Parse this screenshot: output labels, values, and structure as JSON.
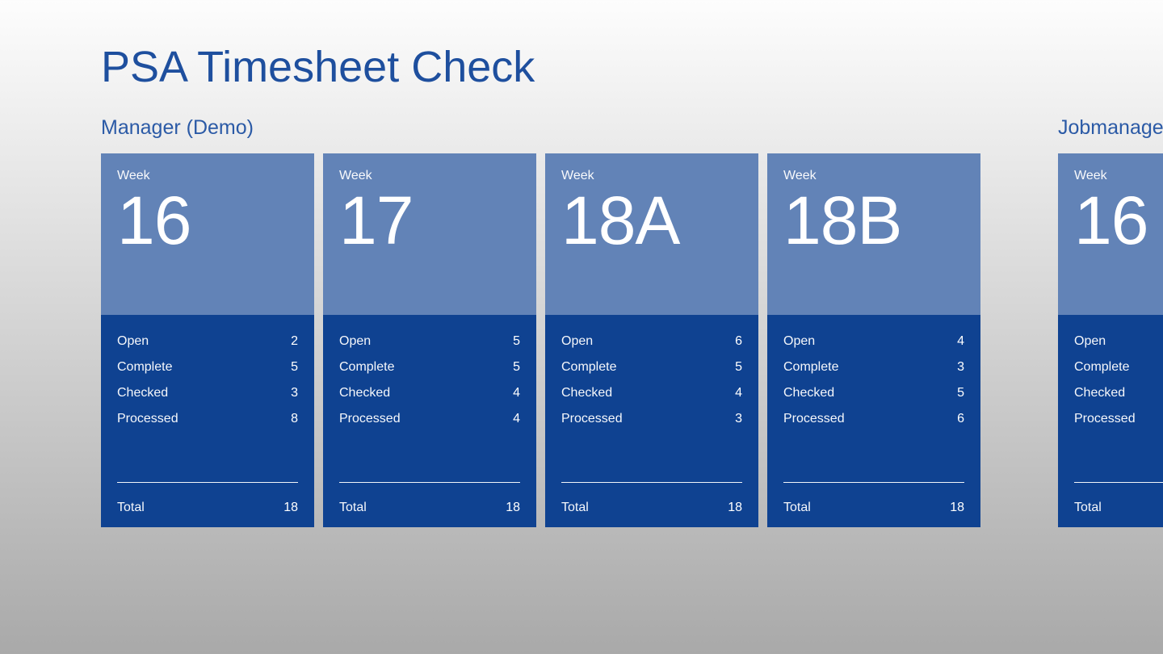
{
  "app": {
    "title": "PSA Timesheet Check"
  },
  "colors": {
    "page_title": "#1e4f9e",
    "group_title": "#2b5aa6",
    "tile_top": "#6283b7",
    "tile_bottom": "#0f4291",
    "tile_text": "#ffffff",
    "background_top": "#fdfdfd",
    "background_bottom": "#a9a9a9"
  },
  "groups": [
    {
      "title": "Manager (Demo)",
      "cards": [
        {
          "week_label": "Week",
          "week": "16",
          "rows": [
            {
              "label": "Open",
              "value": "2"
            },
            {
              "label": "Complete",
              "value": "5"
            },
            {
              "label": "Checked",
              "value": "3"
            },
            {
              "label": "Processed",
              "value": "8"
            }
          ],
          "total_label": "Total",
          "total": "18"
        },
        {
          "week_label": "Week",
          "week": "17",
          "rows": [
            {
              "label": "Open",
              "value": "5"
            },
            {
              "label": "Complete",
              "value": "5"
            },
            {
              "label": "Checked",
              "value": "4"
            },
            {
              "label": "Processed",
              "value": "4"
            }
          ],
          "total_label": "Total",
          "total": "18"
        },
        {
          "week_label": "Week",
          "week": "18A",
          "rows": [
            {
              "label": "Open",
              "value": "6"
            },
            {
              "label": "Complete",
              "value": "5"
            },
            {
              "label": "Checked",
              "value": "4"
            },
            {
              "label": "Processed",
              "value": "3"
            }
          ],
          "total_label": "Total",
          "total": "18"
        },
        {
          "week_label": "Week",
          "week": "18B",
          "rows": [
            {
              "label": "Open",
              "value": "4"
            },
            {
              "label": "Complete",
              "value": "3"
            },
            {
              "label": "Checked",
              "value": "5"
            },
            {
              "label": "Processed",
              "value": "6"
            }
          ],
          "total_label": "Total",
          "total": "18"
        }
      ]
    },
    {
      "title": "Jobmanager",
      "cards": [
        {
          "week_label": "Week",
          "week": "16",
          "rows": [
            {
              "label": "Open",
              "value": ""
            },
            {
              "label": "Complete",
              "value": ""
            },
            {
              "label": "Checked",
              "value": ""
            },
            {
              "label": "Processed",
              "value": ""
            }
          ],
          "total_label": "Total",
          "total": ""
        }
      ]
    }
  ]
}
